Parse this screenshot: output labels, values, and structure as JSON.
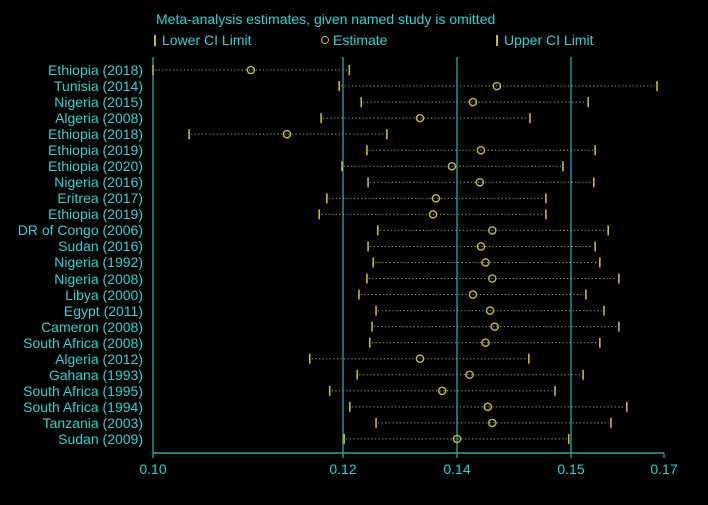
{
  "title": "Meta-analysis estimates, given named study is omitted",
  "legend": {
    "lower": "Lower CI Limit",
    "estimate": "Estimate",
    "upper": "Upper CI Limit"
  },
  "colors": {
    "text": "#2fd3d3",
    "axis": "#2aa6a6",
    "marker": "#c8b838",
    "ci_line": "#8fa8a0",
    "background": "#000000"
  },
  "chart_data": {
    "type": "forest",
    "title": "Meta-analysis estimates, given named study is omitted",
    "xlabel": "",
    "ylabel": "",
    "xticks": [
      "0.10",
      "0.12",
      "0.14",
      "0.15",
      "0.17"
    ],
    "xtick_values": [
      0.1,
      0.12,
      0.14,
      0.15,
      0.17
    ],
    "xtick_pixels": [
      153,
      343,
      457,
      571,
      664
    ],
    "gridlines_at": [
      0.1,
      0.12,
      0.14,
      0.15
    ],
    "legend_position": "top",
    "legend": [
      "Lower CI Limit",
      "Estimate",
      "Upper CI Limit"
    ],
    "categories": [
      "Ethiopia (2018)",
      "Tunisia (2014)",
      "Nigeria (2015)",
      "Algeria (2008)",
      "Ethiopia (2018)",
      "Ethiopia (2019)",
      "Ethiopia (2020)",
      "Nigeria (2016)",
      "Eritrea (2017)",
      "Ethiopia (2019)",
      "DR of Congo (2006)",
      "Sudan (2016)",
      "Nigeria (1992)",
      "Nigeria (2008)",
      "Libya (2000)",
      "Egypt (2011)",
      "Cameron (2008)",
      "South Africa (2008)",
      "Algeria (2012)",
      "Gahana (1993)",
      "South Africa (1995)",
      "South Africa (1994)",
      "Tanzania (2003)",
      "Sudan (2009)"
    ],
    "series": [
      {
        "name": "Lower CI Limit",
        "values": [
          0.1,
          0.1196,
          0.1232,
          0.1177,
          0.1038,
          0.1242,
          0.1199,
          0.1244,
          0.1183,
          0.1175,
          0.1261,
          0.1244,
          0.1253,
          0.1242,
          0.1228,
          0.1258,
          0.1251,
          0.1247,
          0.1165,
          0.1225,
          0.1186,
          0.1212,
          0.1258,
          0.1202
        ]
      },
      {
        "name": "Estimate",
        "values": [
          0.1103,
          0.1435,
          0.1414,
          0.1335,
          0.1141,
          0.1421,
          0.1391,
          0.142,
          0.1363,
          0.1358,
          0.1431,
          0.1421,
          0.1425,
          0.1431,
          0.1414,
          0.1429,
          0.1433,
          0.1425,
          0.1335,
          0.1411,
          0.1374,
          0.1427,
          0.1431,
          0.14
        ]
      },
      {
        "name": "Upper CI Limit",
        "values": [
          0.1211,
          0.1685,
          0.1537,
          0.1464,
          0.1277,
          0.1552,
          0.1493,
          0.1549,
          0.1478,
          0.1478,
          0.158,
          0.1552,
          0.1562,
          0.1603,
          0.1532,
          0.1571,
          0.1603,
          0.1562,
          0.1463,
          0.1526,
          0.1486,
          0.162,
          0.1586,
          0.1498
        ]
      }
    ],
    "xlim": [
      0.1,
      0.17
    ]
  }
}
